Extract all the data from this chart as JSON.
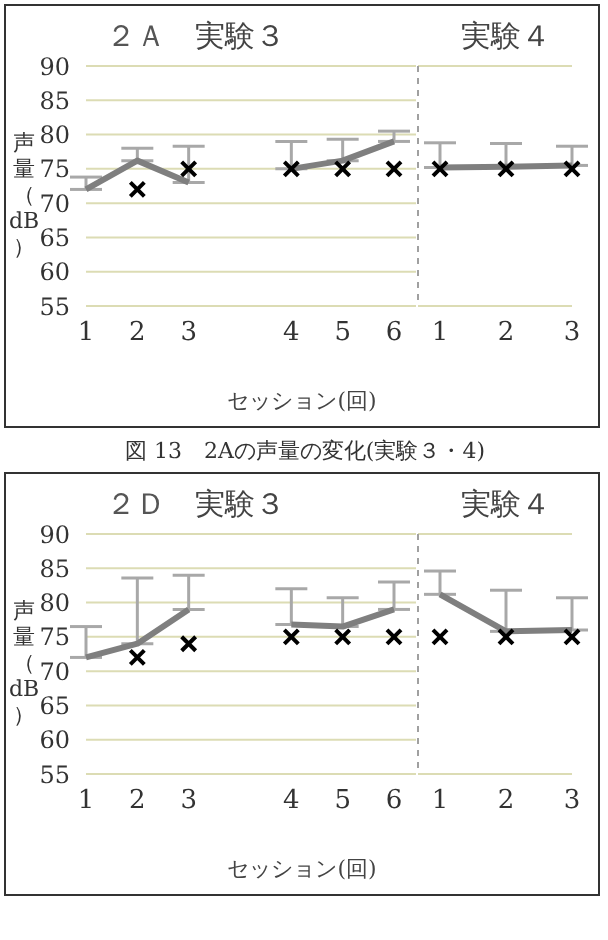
{
  "chart_data": [
    {
      "type": "line",
      "title": "２Ａ",
      "annotations": [
        "実験３",
        "図 13　2Aの声量の変化(実験３・4)"
      ],
      "xlabel": "セッション(回)",
      "ylabel": "声量（dB）",
      "categories": [
        "1",
        "2",
        "3",
        null,
        "4",
        "5",
        "6"
      ],
      "ylim": [
        55,
        90
      ],
      "yticks": [
        55,
        60,
        65,
        70,
        75,
        80,
        85,
        90
      ],
      "grid": "y",
      "series": [
        {
          "type": "line",
          "color": "#7f7f7f",
          "values": [
            72,
            76.2,
            73,
            null,
            75,
            76.2,
            79
          ],
          "errors": [
            [
              72,
              73.8
            ],
            [
              76.2,
              78
            ],
            [
              73,
              78.3
            ],
            null,
            [
              75,
              79
            ],
            [
              76.2,
              79.3
            ],
            [
              79,
              80.5
            ]
          ]
        },
        {
          "type": "scatter",
          "color": "#000000",
          "marker": "cross",
          "values": [
            null,
            72,
            75,
            null,
            75,
            75,
            75
          ]
        }
      ]
    },
    {
      "type": "line",
      "title": "実験４",
      "categories": [
        "1",
        "2",
        "3"
      ],
      "ylim": [
        55,
        90
      ],
      "yticks": [
        55,
        60,
        65,
        70,
        75,
        80,
        85,
        90
      ],
      "grid": "y",
      "tick_labels": "x",
      "series": [
        {
          "type": "line",
          "color": "#7f7f7f",
          "values": [
            75.2,
            75.3,
            75.5
          ],
          "errors": [
            [
              75.2,
              78.8
            ],
            [
              75.3,
              78.7
            ],
            [
              75.5,
              78.3
            ]
          ]
        },
        {
          "type": "scatter",
          "color": "#000000",
          "marker": "cross",
          "values": [
            75,
            75,
            75
          ]
        }
      ]
    },
    {
      "type": "line",
      "title": "２Ｄ",
      "annotations": [
        "実験３"
      ],
      "xlabel": "セッション(回)",
      "ylabel": "声量（dB）",
      "categories": [
        "1",
        "2",
        "3",
        null,
        "4",
        "5",
        "6"
      ],
      "ylim": [
        55,
        90
      ],
      "yticks": [
        55,
        60,
        65,
        70,
        75,
        80,
        85,
        90
      ],
      "grid": "y",
      "series": [
        {
          "type": "line",
          "color": "#7f7f7f",
          "values": [
            72,
            74,
            79,
            null,
            76.8,
            76.5,
            79
          ],
          "errors": [
            [
              72,
              76.5
            ],
            [
              74,
              83.6
            ],
            [
              79,
              84
            ],
            null,
            [
              76.8,
              82
            ],
            [
              76.5,
              80.7
            ],
            [
              79,
              83
            ]
          ]
        },
        {
          "type": "scatter",
          "color": "#000000",
          "marker": "cross",
          "values": [
            null,
            72,
            74,
            null,
            75,
            75,
            75
          ]
        }
      ]
    },
    {
      "type": "line",
      "title": "実験４",
      "categories": [
        "1",
        "2",
        "3"
      ],
      "ylim": [
        55,
        90
      ],
      "yticks": [
        55,
        60,
        65,
        70,
        75,
        80,
        85,
        90
      ],
      "grid": "y",
      "tick_labels": "x",
      "series": [
        {
          "type": "line",
          "color": "#7f7f7f",
          "values": [
            81.2,
            75.8,
            76
          ],
          "errors": [
            [
              81.2,
              84.6
            ],
            [
              75.8,
              81.8
            ],
            [
              76,
              80.7
            ]
          ]
        },
        {
          "type": "scatter",
          "color": "#000000",
          "marker": "cross",
          "values": [
            75,
            75,
            75
          ]
        }
      ]
    }
  ]
}
